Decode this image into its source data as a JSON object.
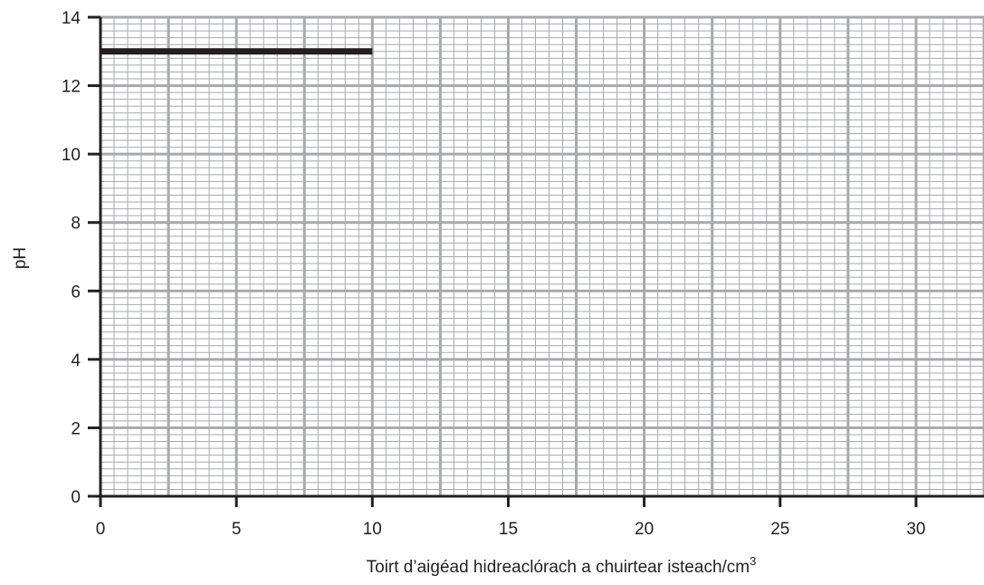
{
  "chart_data": {
    "type": "line",
    "title": "",
    "xlabel": "Toirt d’aigéad hidreaclórach a chuirtear isteach/cm",
    "xlabel_superscript": "3",
    "ylabel": "pH",
    "xlim": [
      0,
      32.5
    ],
    "ylim": [
      0,
      14
    ],
    "x_ticks": [
      "0",
      "5",
      "10",
      "15",
      "20",
      "25",
      "30"
    ],
    "y_ticks": [
      "0",
      "2",
      "4",
      "6",
      "8",
      "10",
      "12",
      "14"
    ],
    "grid": true,
    "legend": "none",
    "series": [
      {
        "x": [
          0,
          10
        ],
        "y": [
          13,
          13
        ]
      }
    ],
    "colors": {
      "major_grid": "#a7a9ac",
      "minor_grid": "#a7a9ac",
      "axis": "#231f20",
      "line": "#231f20"
    }
  }
}
